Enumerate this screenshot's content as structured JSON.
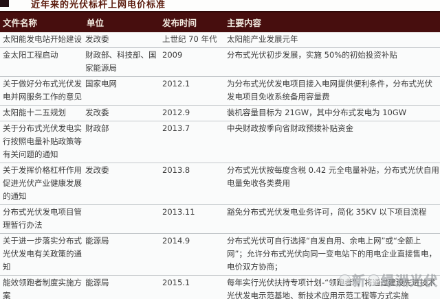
{
  "title": "近年来的光伏标杆上网电价标准",
  "colors": {
    "header_bg": "#470e0e",
    "header_text": "#f3ece1",
    "title_text": "#5a1a0c",
    "divider": "#c3c7ca"
  },
  "watermark": {
    "part1": "新",
    "part2": "绿洲光伏"
  },
  "table": {
    "headers": [
      "文件名称",
      "单位",
      "发布时间",
      "主要内容"
    ],
    "rows": [
      {
        "name": "太阳能发电站开始建设",
        "unit": "发改委",
        "date": "上世纪 70 年代",
        "content": "太阳能产业发展元年"
      },
      {
        "name": "金太阳工程启动",
        "unit": "财政部、科技部、国家能源局",
        "date": "2009",
        "content": "分布式光伏初步发展，实施 50%的初始投资补贴"
      },
      {
        "name": "关于做好分布式光伏发电并网服务工作的意见",
        "unit": "国家电网",
        "date": "2012.1",
        "content": "为分布式光伏发电项目接入电网提供便利条件，分布式光伏发电项目免收系统备用容量费"
      },
      {
        "name": "太阳能十二五规划",
        "unit": "发改委",
        "date": "2012.9",
        "content": "装机容量目标为 21GW，其中分布式发电为 10GW"
      },
      {
        "name": "关于分布式光伏发电实行按照电量补贴政策等有关问题的通知",
        "unit": "财政部",
        "date": "2013.7",
        "content": "中央财政按季向省财政预拨补贴资金"
      },
      {
        "name": "关于发挥价格杠杆作用促进光伏产业健康发展的通知",
        "unit": "发改委",
        "date": "2013.8",
        "content": "分布式光伏按每度含税 0.42 元全电量补贴，分布式光伏自用电量免收各类费用"
      },
      {
        "name": "分布式光伏发电项目管理暂行办法",
        "unit": "",
        "date": "2013.11",
        "content": "豁免分布式光伏发电业务许可，简化 35KV 以下项目流程"
      },
      {
        "name": "关于进一步落实分布式光伏发电有关政策的通知",
        "unit": "能源局",
        "date": "2014.9",
        "content": "分布式光伏可自行选择“自发自用、余电上网”或“全额上网”；允许分布式光伏向同一变电站下的用电企业直接售电，电价双方协商；"
      },
      {
        "name": "能效领跑者制度实施方案",
        "unit": "能源局",
        "date": "2015.1",
        "content": "每年实行光伏扶持专项计划-“领跑者”，将通过建设先进技术光伏发电示范基地、新技术应用示范工程等方式实施"
      }
    ]
  }
}
